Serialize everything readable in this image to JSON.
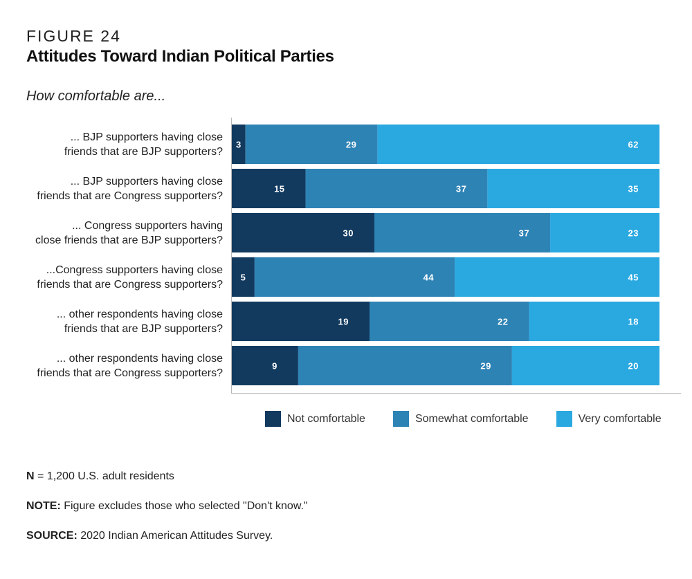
{
  "figure_label": "FIGURE 24",
  "title": "Attitudes Toward Indian Political Parties",
  "subtitle": "How comfortable are...",
  "colors": {
    "not_comfortable": "#123a5f",
    "somewhat_comfortable": "#2e83b5",
    "very_comfortable": "#2aa8e0",
    "axis": "#b8b8b8"
  },
  "chart_data": {
    "type": "bar",
    "orientation": "horizontal",
    "stacked": true,
    "categories": [
      [
        "... BJP supporters having close",
        "friends that are BJP supporters?"
      ],
      [
        "... BJP supporters having close",
        "friends that are Congress supporters?"
      ],
      [
        "... Congress supporters having",
        "close friends that are BJP supporters?"
      ],
      [
        "...Congress supporters having close",
        "friends that are Congress supporters?"
      ],
      [
        "... other respondents having close",
        "friends that are BJP supporters?"
      ],
      [
        "... other respondents having close",
        "friends that are Congress supporters?"
      ]
    ],
    "series": [
      {
        "name": "Not comfortable",
        "values": [
          3,
          15,
          30,
          5,
          19,
          9
        ]
      },
      {
        "name": "Somewhat comfortable",
        "values": [
          29,
          37,
          37,
          44,
          22,
          29
        ]
      },
      {
        "name": "Very comfortable",
        "values": [
          62,
          35,
          23,
          45,
          18,
          20
        ]
      }
    ],
    "legend_position": "bottom",
    "grid": false
  },
  "footnotes": {
    "n_label": "N",
    "n_text": " = 1,200 U.S. adult residents",
    "note_label": "NOTE:",
    "note_text": " Figure excludes those who selected \"Don't know.\"",
    "source_label": "SOURCE:",
    "source_text": " 2020 Indian American Attitudes Survey."
  }
}
